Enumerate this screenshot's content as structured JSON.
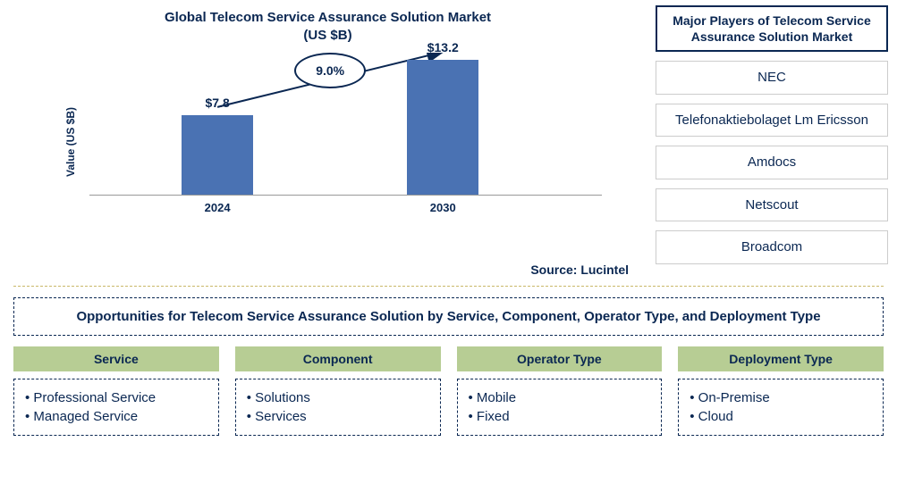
{
  "chart": {
    "title_line1": "Global Telecom Service Assurance Solution Market",
    "title_line2": "(US $B)",
    "ylabel": "Value (US $B)",
    "title_color": "#0a2752",
    "bar_color": "#4a72b3",
    "ylim": [
      0,
      14
    ],
    "bars": [
      {
        "year": "2024",
        "value": 7.8,
        "label": "$7.8",
        "x_pct": 18
      },
      {
        "year": "2030",
        "value": 13.2,
        "label": "$13.2",
        "x_pct": 62
      }
    ],
    "growth_label": "9.0%",
    "growth_ellipse_color": "#0a2752",
    "source_label": "Source: Lucintel"
  },
  "players": {
    "title": "Major Players of Telecom Service Assurance Solution Market",
    "title_color": "#0a2752",
    "item_text_color": "#0a2752",
    "items": [
      "NEC",
      "Telefonaktiebolaget Lm Ericsson",
      "Amdocs",
      "Netscout",
      "Broadcom"
    ]
  },
  "opportunities": {
    "title": "Opportunities for Telecom Service Assurance Solution by Service, Component, Operator Type, and Deployment Type",
    "title_color": "#0a2752",
    "header_bg": "#b7cd94",
    "header_text_color": "#0a2752",
    "item_text_color": "#0a2752",
    "columns": [
      {
        "header": "Service",
        "items": [
          "Professional Service",
          "Managed Service"
        ]
      },
      {
        "header": "Component",
        "items": [
          "Solutions",
          "Services"
        ]
      },
      {
        "header": "Operator Type",
        "items": [
          "Mobile",
          "Fixed"
        ]
      },
      {
        "header": "Deployment Type",
        "items": [
          "On-Premise",
          "Cloud"
        ]
      }
    ]
  }
}
